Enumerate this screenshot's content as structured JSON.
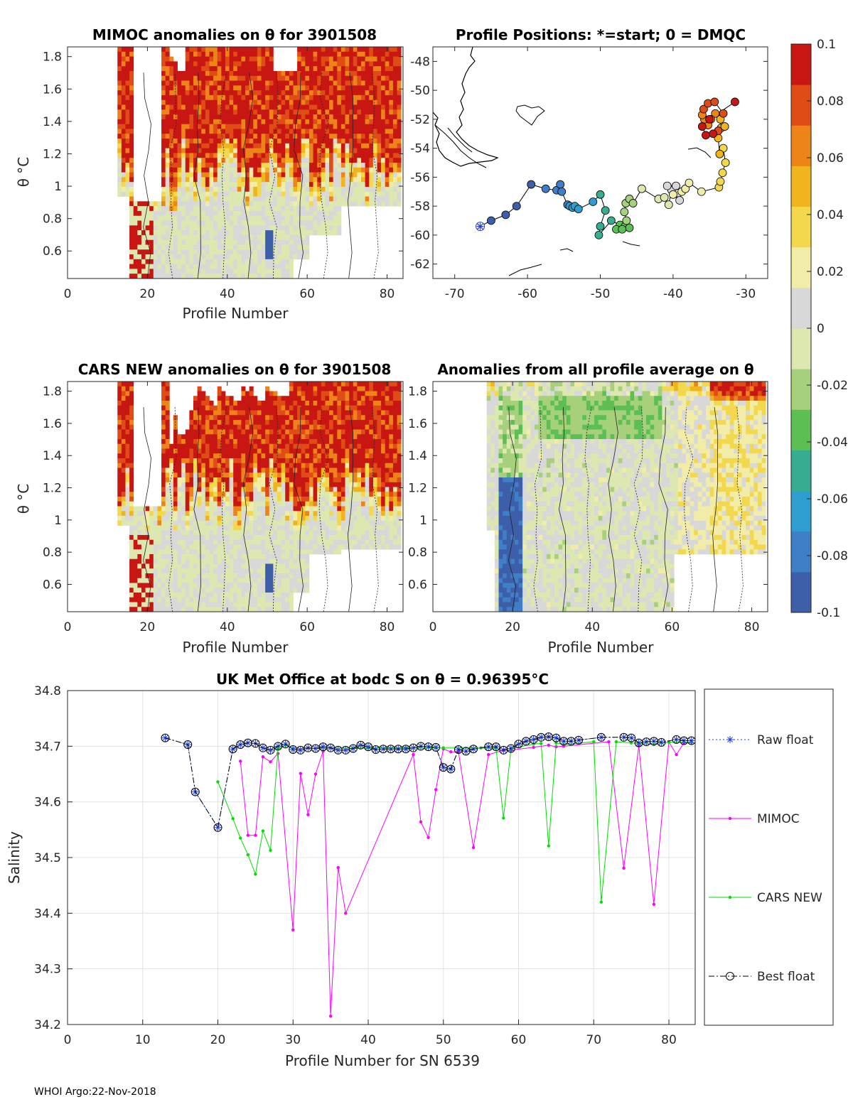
{
  "footer": "WHOI Argo:22-Nov-2018",
  "colorbar": {
    "min": -0.1,
    "max": 0.1,
    "labels": [
      "0.1",
      "0.08",
      "0.06",
      "0.04",
      "0.02",
      "0",
      "-0.02",
      "-0.04",
      "-0.06",
      "-0.08",
      "-0.1"
    ],
    "colors": [
      "#3d5ea8",
      "#3f7fc8",
      "#2e9ed0",
      "#36ad8e",
      "#5cbf53",
      "#a6d07b",
      "#dde8b0",
      "#d8d8d8",
      "#f1eda8",
      "#f3d84e",
      "#f0b51c",
      "#ec8418",
      "#e04c15",
      "#c81713"
    ]
  },
  "panels": {
    "mimoc": {
      "title": "MIMOC anomalies on θ  for 3901508",
      "xlabel": "Profile Number",
      "ylabel": "θ °C",
      "xticks": [
        "0",
        "20",
        "40",
        "60",
        "80"
      ],
      "yticks": [
        "1.8",
        "1.6",
        "1.4",
        "1.2",
        "1",
        "0.8",
        "0.6"
      ]
    },
    "map": {
      "title": "Profile Positions: *=start; 0 = DMQC",
      "xticks": [
        "-70",
        "-60",
        "-50",
        "-40",
        "-30"
      ],
      "yticks": [
        "-48",
        "-50",
        "-52",
        "-54",
        "-56",
        "-58",
        "-60",
        "-62"
      ],
      "lon_range": [
        -73,
        -27
      ],
      "lat_range": [
        -63,
        -47
      ],
      "track": [
        [
          -66.5,
          -59.4
        ],
        [
          -65,
          -59.0
        ],
        [
          -63,
          -58.6
        ],
        [
          -61.5,
          -58.0
        ],
        [
          -59.5,
          -56.5
        ],
        [
          -57.5,
          -56.8
        ],
        [
          -56,
          -56.9
        ],
        [
          -55.5,
          -56.5
        ],
        [
          -55.3,
          -57.0
        ],
        [
          -54.5,
          -57.9
        ],
        [
          -54.2,
          -58.0
        ],
        [
          -53.8,
          -58.1
        ],
        [
          -53.5,
          -58.0
        ],
        [
          -53,
          -58.2
        ],
        [
          -51,
          -57.7
        ],
        [
          -50,
          -57.2
        ],
        [
          -49.3,
          -58.3
        ],
        [
          -50,
          -59.4
        ],
        [
          -50.2,
          -60.0
        ],
        [
          -48.5,
          -59.0
        ],
        [
          -47.3,
          -59.3
        ],
        [
          -46.6,
          -59.4
        ],
        [
          -46.0,
          -59.5
        ],
        [
          -47.8,
          -59.6
        ],
        [
          -47,
          -59.6
        ],
        [
          -46.4,
          -59.0
        ],
        [
          -46.7,
          -58.4
        ],
        [
          -46.5,
          -57.8
        ],
        [
          -46,
          -57.5
        ],
        [
          -45.5,
          -57.8
        ],
        [
          -44.3,
          -56.8
        ],
        [
          -42,
          -57.5
        ],
        [
          -41.2,
          -57.4
        ],
        [
          -40.6,
          -57.9
        ],
        [
          -40.2,
          -56.9
        ],
        [
          -40.8,
          -56.6
        ],
        [
          -39.6,
          -56.6
        ],
        [
          -39.3,
          -57.1
        ],
        [
          -39.1,
          -57.6
        ],
        [
          -40.0,
          -57.2
        ],
        [
          -38.8,
          -57.0
        ],
        [
          -38.3,
          -56.8
        ],
        [
          -37.8,
          -56.4
        ],
        [
          -36.1,
          -57.0
        ],
        [
          -33.7,
          -56.7
        ],
        [
          -33.5,
          -56.3
        ],
        [
          -33.2,
          -55.7
        ],
        [
          -32.8,
          -55.0
        ],
        [
          -33.1,
          -54.0
        ],
        [
          -33.6,
          -54.4
        ],
        [
          -33.8,
          -53.3
        ],
        [
          -33.4,
          -52.6
        ],
        [
          -32.9,
          -52.5
        ],
        [
          -33.5,
          -52.0
        ],
        [
          -34.2,
          -51.6
        ],
        [
          -34.8,
          -52.0
        ],
        [
          -35.2,
          -52.4
        ],
        [
          -35.7,
          -52.0
        ],
        [
          -36.0,
          -51.7
        ],
        [
          -35.8,
          -51.3
        ],
        [
          -35.2,
          -50.9
        ],
        [
          -34.3,
          -50.8
        ],
        [
          -33.1,
          -51.6
        ],
        [
          -33.8,
          -52.8
        ],
        [
          -34.5,
          -53.0
        ],
        [
          -35.5,
          -53.1
        ],
        [
          -36.0,
          -52.5
        ],
        [
          -35.0,
          -52.0
        ],
        [
          -31.5,
          -50.8
        ]
      ]
    },
    "cars": {
      "title": "CARS NEW anomalies on θ for 3901508",
      "xlabel": "Profile Number",
      "ylabel": "θ °C",
      "xticks": [
        "0",
        "20",
        "40",
        "60",
        "80"
      ],
      "yticks": [
        "1.8",
        "1.6",
        "1.4",
        "1.2",
        "1",
        "0.8",
        "0.6"
      ]
    },
    "avg": {
      "title": "Anomalies from all profile average on θ",
      "xlabel": "Profile Number",
      "xticks": [
        "0",
        "20",
        "40",
        "60",
        "80"
      ],
      "yticks": [
        "1.8",
        "1.6",
        "1.4",
        "1.2",
        "1",
        "0.8",
        "0.6"
      ]
    }
  },
  "chart_data": {
    "type": "line",
    "title": "UK Met Office at bodc S on θ = 0.96395°C",
    "xlabel": "Profile Number for SN 6539",
    "ylabel": "Salinity",
    "xlim": [
      0,
      83.5
    ],
    "ylim": [
      34.2,
      34.8
    ],
    "xticks": [
      "0",
      "10",
      "20",
      "30",
      "40",
      "50",
      "60",
      "70",
      "80"
    ],
    "yticks": [
      "34.8",
      "34.7",
      "34.6",
      "34.5",
      "34.4",
      "34.3",
      "34.2"
    ],
    "series": [
      {
        "name": "Raw float",
        "color": "#1f3fe0",
        "style": "dotted",
        "marker": "star",
        "x": [
          13,
          16,
          17,
          20,
          22,
          23,
          24,
          25,
          26,
          27,
          28,
          29,
          30,
          31,
          32,
          33,
          34,
          35,
          36,
          37,
          38,
          39,
          40,
          41,
          42,
          43,
          44,
          45,
          46,
          47,
          48,
          49,
          50,
          51,
          52,
          53,
          54,
          56,
          57,
          58,
          59,
          60,
          61,
          62,
          63,
          64,
          65,
          66,
          67,
          68,
          71,
          74,
          75,
          76,
          77,
          78,
          79,
          81,
          82,
          83
        ],
        "y": [
          34.715,
          34.703,
          34.618,
          34.554,
          34.695,
          34.703,
          34.706,
          34.705,
          34.697,
          34.693,
          34.7,
          34.704,
          34.694,
          34.693,
          34.697,
          34.696,
          34.699,
          34.697,
          34.693,
          34.693,
          34.696,
          34.702,
          34.699,
          34.694,
          34.695,
          34.695,
          34.695,
          34.695,
          34.697,
          34.7,
          34.699,
          34.698,
          34.662,
          34.659,
          34.694,
          34.691,
          34.695,
          34.699,
          34.699,
          34.693,
          34.696,
          34.704,
          34.709,
          34.712,
          34.716,
          34.717,
          34.715,
          34.709,
          34.709,
          34.711,
          34.716,
          34.716,
          34.715,
          34.706,
          34.708,
          34.709,
          34.707,
          34.712,
          34.71,
          34.71
        ]
      },
      {
        "name": "MIMOC",
        "color": "#ff00ff",
        "style": "solid",
        "marker": "dot",
        "x": [
          23,
          24,
          25,
          26,
          27,
          28,
          30,
          31,
          32,
          33,
          34,
          35,
          36,
          37,
          46,
          47,
          48,
          49,
          50,
          51,
          52,
          54,
          56,
          58,
          59,
          62,
          64,
          65,
          66,
          72,
          74,
          76,
          78,
          80,
          81,
          82,
          83
        ],
        "y": [
          34.673,
          34.54,
          34.54,
          34.681,
          34.672,
          34.687,
          34.37,
          34.651,
          34.577,
          34.65,
          34.691,
          34.215,
          34.482,
          34.4,
          34.685,
          34.564,
          34.536,
          34.622,
          34.695,
          34.69,
          34.69,
          34.518,
          34.685,
          34.693,
          34.693,
          34.698,
          34.702,
          34.699,
          34.7,
          34.708,
          34.481,
          34.701,
          34.416,
          34.708,
          34.685,
          34.706,
          34.707
        ]
      },
      {
        "name": "CARS NEW",
        "color": "#00e000",
        "style": "solid",
        "marker": "dot",
        "x": [
          20,
          22,
          23,
          24,
          25,
          26,
          27,
          28,
          29,
          30,
          40,
          45,
          50,
          55,
          57,
          58,
          59,
          62,
          63,
          64,
          65,
          66,
          70,
          71,
          73,
          75,
          78,
          80,
          83
        ],
        "y": [
          34.636,
          34.57,
          34.535,
          34.505,
          34.47,
          34.548,
          34.513,
          34.695,
          34.702,
          34.696,
          34.697,
          34.697,
          34.697,
          34.697,
          34.697,
          34.571,
          34.696,
          34.704,
          34.705,
          34.521,
          34.706,
          34.703,
          34.708,
          34.42,
          34.708,
          34.706,
          34.703,
          34.707,
          34.707
        ]
      },
      {
        "name": "Best float",
        "color": "#000000",
        "style": "dashdot",
        "marker": "circle",
        "x": [
          13,
          16,
          17,
          20,
          22,
          23,
          24,
          25,
          26,
          27,
          28,
          29,
          30,
          31,
          32,
          33,
          34,
          35,
          36,
          37,
          38,
          39,
          40,
          41,
          42,
          43,
          44,
          45,
          46,
          47,
          48,
          49,
          50,
          51,
          52,
          53,
          54,
          56,
          57,
          58,
          59,
          60,
          61,
          62,
          63,
          64,
          65,
          66,
          67,
          68,
          71,
          74,
          75,
          76,
          77,
          78,
          79,
          81,
          82,
          83
        ],
        "y": [
          34.715,
          34.703,
          34.618,
          34.554,
          34.695,
          34.703,
          34.706,
          34.705,
          34.697,
          34.693,
          34.7,
          34.704,
          34.694,
          34.693,
          34.697,
          34.696,
          34.699,
          34.697,
          34.693,
          34.693,
          34.696,
          34.702,
          34.699,
          34.694,
          34.695,
          34.695,
          34.695,
          34.695,
          34.697,
          34.7,
          34.699,
          34.698,
          34.662,
          34.659,
          34.694,
          34.691,
          34.695,
          34.699,
          34.699,
          34.693,
          34.696,
          34.704,
          34.709,
          34.712,
          34.716,
          34.717,
          34.715,
          34.709,
          34.709,
          34.711,
          34.716,
          34.716,
          34.715,
          34.706,
          34.708,
          34.709,
          34.707,
          34.712,
          34.71,
          34.71
        ]
      }
    ]
  }
}
